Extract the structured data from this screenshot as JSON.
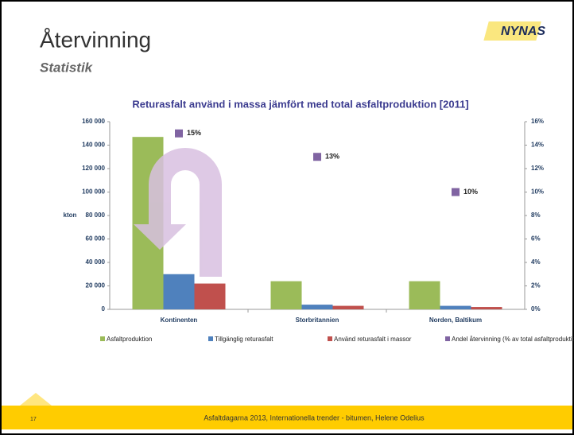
{
  "slide": {
    "title": "Återvinning",
    "subtitle": "Statistik",
    "logo": "NYNAS",
    "page_number": "17",
    "footer": "Asfaltdagarna 2013, Internationella trender - bitumen, Helene Odelius"
  },
  "chart_data": {
    "type": "bar",
    "title": "Returasfalt använd i massa jämfört med  total asfaltproduktion [2011]",
    "ylabel": "kton",
    "categories": [
      "Kontinenten",
      "Storbritannien",
      "Norden, Baltikum"
    ],
    "series": [
      {
        "name": "Asfaltproduktion",
        "color": "#9bbb59",
        "values": [
          147000,
          24000,
          24000
        ]
      },
      {
        "name": "Tillgänglig returasfalt",
        "color": "#4f81bd",
        "values": [
          30000,
          4000,
          3000
        ]
      },
      {
        "name": "Använd returasfalt i massor",
        "color": "#c0504d",
        "values": [
          22000,
          3000,
          2000
        ]
      },
      {
        "name": "Andel återvinning (% av total asfaltproduktion)",
        "color": "#8064a2",
        "axis": "y2",
        "values": [
          15,
          13,
          10
        ],
        "value_labels": [
          "15%",
          "13%",
          "10%"
        ]
      }
    ],
    "ylim": [
      0,
      160000
    ],
    "yticks": [
      0,
      {
        "value": 20000,
        "label": "20 000"
      },
      {
        "value": 40000,
        "label": "40 000"
      },
      {
        "value": 60000,
        "label": "60 000"
      },
      {
        "value": 80000,
        "label": "80 000"
      },
      {
        "value": 100000,
        "label": "100 000"
      },
      {
        "value": 120000,
        "label": "120 000"
      },
      {
        "value": 140000,
        "label": "140 000"
      },
      {
        "value": 160000,
        "label": "160 000"
      }
    ],
    "y2lim": [
      0,
      16
    ],
    "y2ticks": [
      {
        "value": 0,
        "label": "0%"
      },
      {
        "value": 2,
        "label": "2%"
      },
      {
        "value": 4,
        "label": "4%"
      },
      {
        "value": 6,
        "label": "6%"
      },
      {
        "value": 8,
        "label": "8%"
      },
      {
        "value": 10,
        "label": "10%"
      },
      {
        "value": 12,
        "label": "12%"
      },
      {
        "value": 14,
        "label": "14%"
      },
      {
        "value": 16,
        "label": "16%"
      }
    ],
    "legend": "bottom"
  }
}
